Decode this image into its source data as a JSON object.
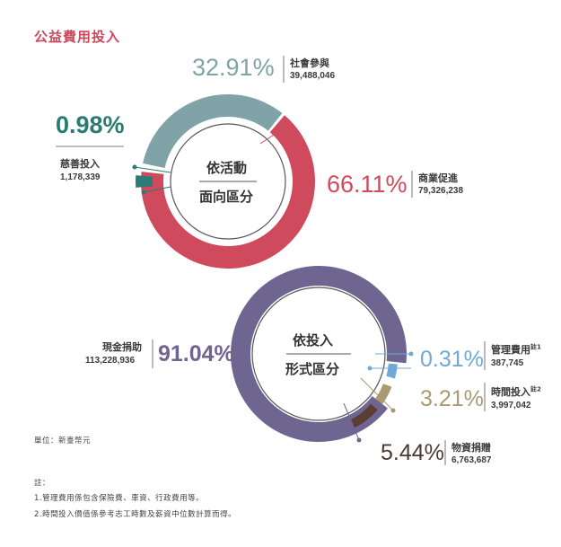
{
  "title": "公益費用投入",
  "unit": "單位：新臺幣元",
  "notes": {
    "heading": "註：",
    "items": [
      "1.管理費用係包含保險費、車資、行政費用等。",
      "2.時間投入價值係參考志工時數及薪資中位數計算而得。"
    ]
  },
  "chart_data": [
    {
      "type": "pie",
      "center_label": [
        "依活動",
        "面向區分"
      ],
      "slices": [
        {
          "label": "社會參與",
          "percent": "32.91%",
          "amount": "39,488,046",
          "value": 32.91,
          "color": "#7fa3a6"
        },
        {
          "label": "商業促進",
          "percent": "66.11%",
          "amount": "79,326,238",
          "value": 66.11,
          "color": "#cf4a5c"
        },
        {
          "label": "慈善投入",
          "percent": "0.98%",
          "amount": "1,178,339",
          "value": 0.98,
          "color": "#2a7b73"
        }
      ]
    },
    {
      "type": "pie",
      "center_label": [
        "依投入",
        "形式區分"
      ],
      "slices": [
        {
          "label": "現金捐助",
          "percent": "91.04%",
          "amount": "113,228,936",
          "value": 91.04,
          "color": "#6e6590"
        },
        {
          "label": "管理費用",
          "sup": "註1",
          "percent": "0.31%",
          "amount": "387,745",
          "value": 0.31,
          "color": "#6fa9d6"
        },
        {
          "label": "時間投入",
          "sup": "註2",
          "percent": "3.21%",
          "amount": "3,997,042",
          "value": 3.21,
          "color": "#a99a72"
        },
        {
          "label": "物資捐贈",
          "percent": "5.44%",
          "amount": "6,763,687",
          "value": 5.44,
          "color": "#5a3e34"
        }
      ]
    }
  ]
}
